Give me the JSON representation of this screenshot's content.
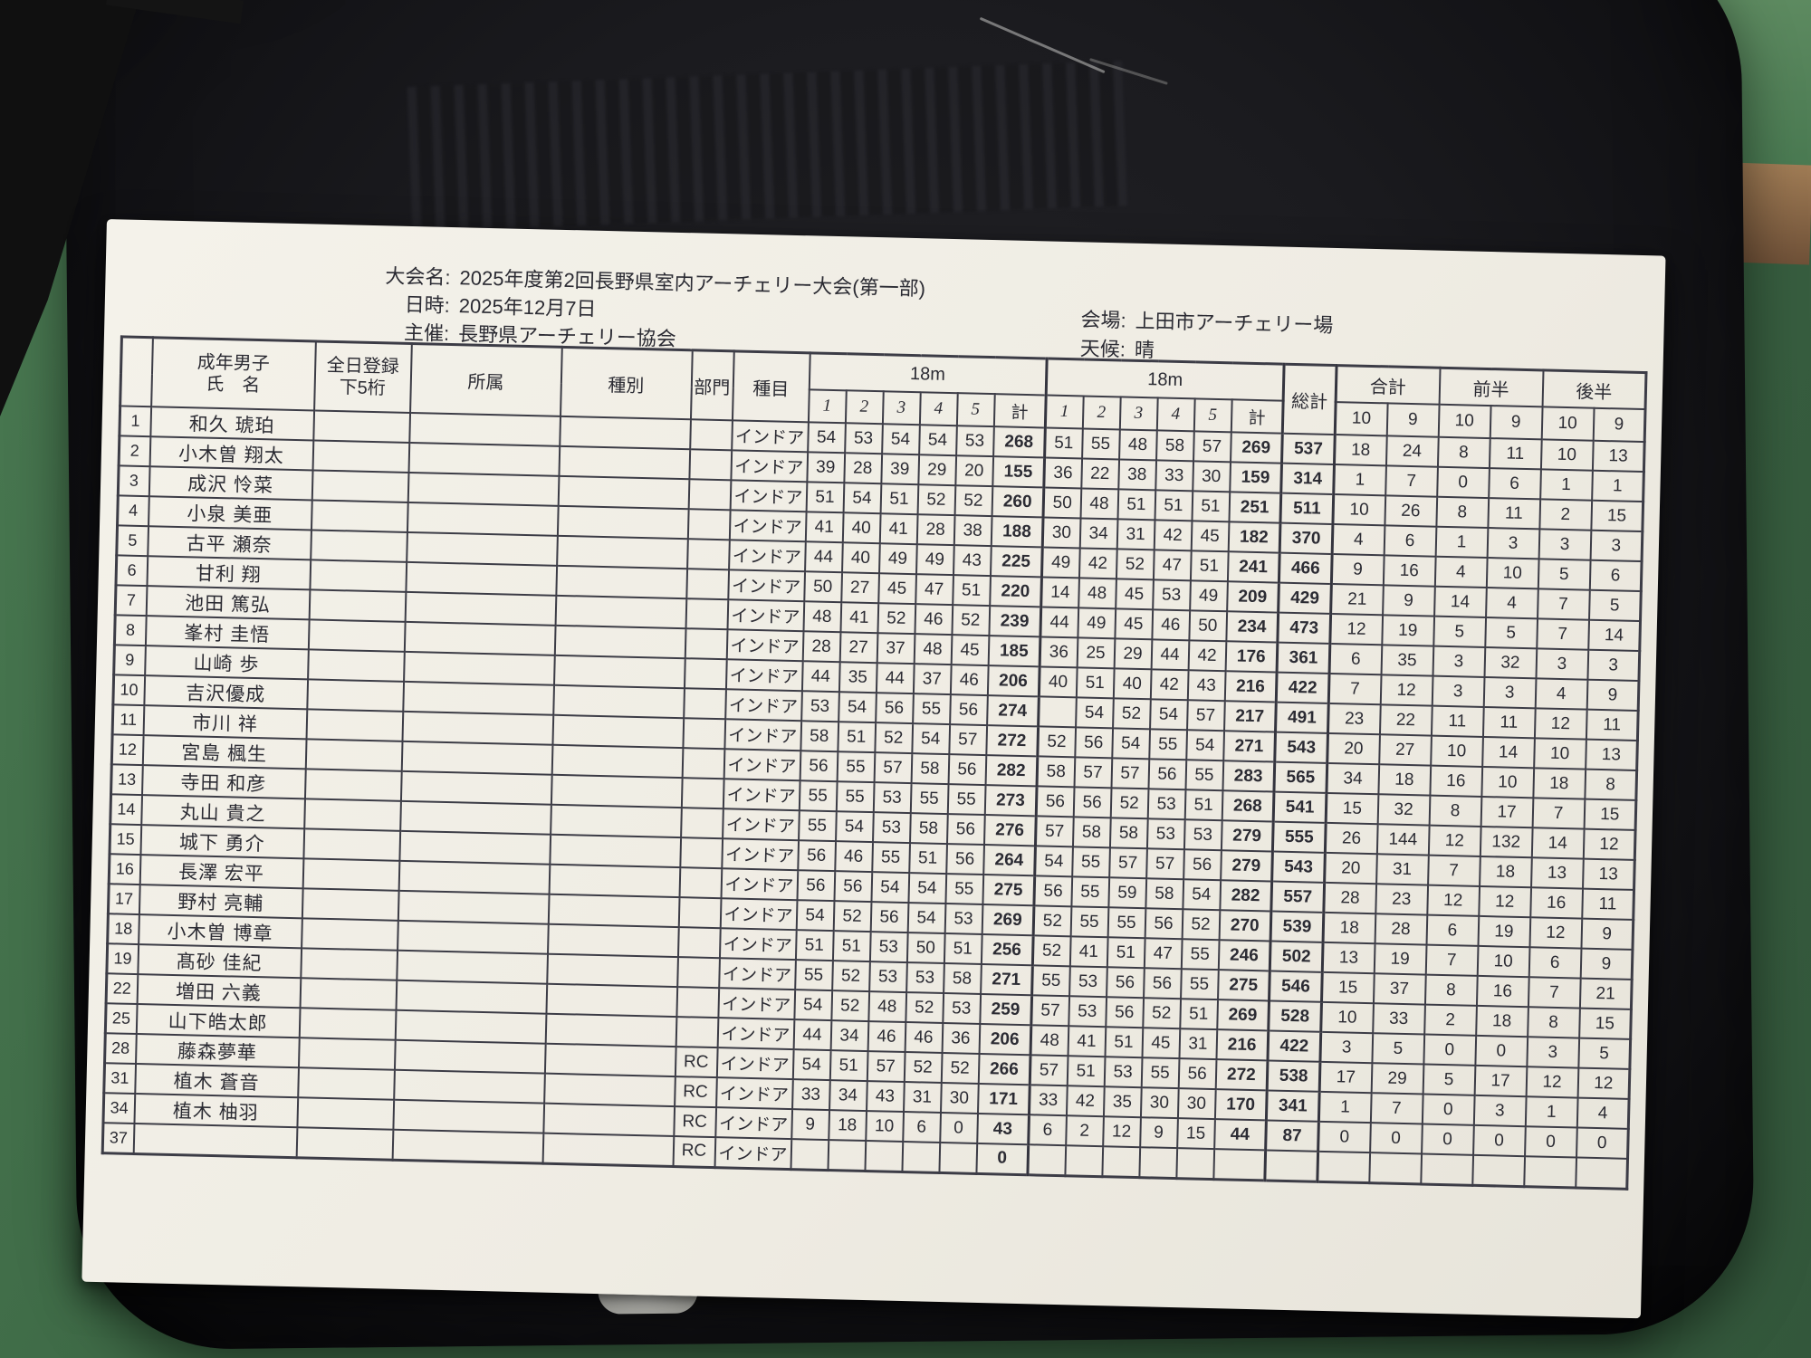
{
  "meta": {
    "event_label": "大会名:",
    "event_name": "2025年度第2回長野県室内アーチェリー大会(第一部)",
    "date_label": "日時:",
    "date_value": "2025年12月7日",
    "organizer_label": "主催:",
    "organizer_value": "長野県アーチェリー協会",
    "venue_label": "会場:",
    "venue_value": "上田市アーチェリー場",
    "weather_label": "天候:",
    "weather_value": "晴"
  },
  "colors": {
    "floor_green": "#3f6b47",
    "chair_black": "#17171a",
    "paper": "#f1efe7",
    "ink": "#2b2b33",
    "table_line": "#3c3c46"
  },
  "table": {
    "headers": {
      "category": "成年男子",
      "name": "氏　名",
      "reg1": "全日登録",
      "reg2": "下5桁",
      "affiliation": "所属",
      "class": "種別",
      "division": "部門",
      "event": "種目",
      "dist1": "18m",
      "dist2": "18m",
      "ends": [
        "1",
        "2",
        "3",
        "4",
        "5"
      ],
      "sum": "計",
      "grand_total": "総計",
      "total": "合計",
      "first_half": "前半",
      "second_half": "後半",
      "ten": "10",
      "nine": "9"
    },
    "rows": [
      {
        "no": "1",
        "name": "和久 琥珀",
        "division": "",
        "event": "インドア",
        "d1": [
          "54",
          "53",
          "54",
          "54",
          "53",
          "268"
        ],
        "d2": [
          "51",
          "55",
          "48",
          "58",
          "57",
          "269"
        ],
        "grand": "537",
        "counts": [
          "18",
          "24",
          "8",
          "11",
          "10",
          "13"
        ]
      },
      {
        "no": "2",
        "name": "小木曽 翔太",
        "division": "",
        "event": "インドア",
        "d1": [
          "39",
          "28",
          "39",
          "29",
          "20",
          "155"
        ],
        "d2": [
          "36",
          "22",
          "38",
          "33",
          "30",
          "159"
        ],
        "grand": "314",
        "counts": [
          "1",
          "7",
          "0",
          "6",
          "1",
          "1"
        ]
      },
      {
        "no": "3",
        "name": "成沢 怜菜",
        "division": "",
        "event": "インドア",
        "d1": [
          "51",
          "54",
          "51",
          "52",
          "52",
          "260"
        ],
        "d2": [
          "50",
          "48",
          "51",
          "51",
          "51",
          "251"
        ],
        "grand": "511",
        "counts": [
          "10",
          "26",
          "8",
          "11",
          "2",
          "15"
        ]
      },
      {
        "no": "4",
        "name": "小泉 美亜",
        "division": "",
        "event": "インドア",
        "d1": [
          "41",
          "40",
          "41",
          "28",
          "38",
          "188"
        ],
        "d2": [
          "30",
          "34",
          "31",
          "42",
          "45",
          "182"
        ],
        "grand": "370",
        "counts": [
          "4",
          "6",
          "1",
          "3",
          "3",
          "3"
        ]
      },
      {
        "no": "5",
        "name": "古平 瀬奈",
        "division": "",
        "event": "インドア",
        "d1": [
          "44",
          "40",
          "49",
          "49",
          "43",
          "225"
        ],
        "d2": [
          "49",
          "42",
          "52",
          "47",
          "51",
          "241"
        ],
        "grand": "466",
        "counts": [
          "9",
          "16",
          "4",
          "10",
          "5",
          "6"
        ]
      },
      {
        "no": "6",
        "name": "甘利 翔",
        "division": "",
        "event": "インドア",
        "d1": [
          "50",
          "27",
          "45",
          "47",
          "51",
          "220"
        ],
        "d2": [
          "14",
          "48",
          "45",
          "53",
          "49",
          "209"
        ],
        "grand": "429",
        "counts": [
          "21",
          "9",
          "14",
          "4",
          "7",
          "5"
        ]
      },
      {
        "no": "7",
        "name": "池田 篤弘",
        "division": "",
        "event": "インドア",
        "d1": [
          "48",
          "41",
          "52",
          "46",
          "52",
          "239"
        ],
        "d2": [
          "44",
          "49",
          "45",
          "46",
          "50",
          "234"
        ],
        "grand": "473",
        "counts": [
          "12",
          "19",
          "5",
          "5",
          "7",
          "14"
        ]
      },
      {
        "no": "8",
        "name": "峯村 圭悟",
        "division": "",
        "event": "インドア",
        "d1": [
          "28",
          "27",
          "37",
          "48",
          "45",
          "185"
        ],
        "d2": [
          "36",
          "25",
          "29",
          "44",
          "42",
          "176"
        ],
        "grand": "361",
        "counts": [
          "6",
          "35",
          "3",
          "32",
          "3",
          "3"
        ]
      },
      {
        "no": "9",
        "name": "山崎 歩",
        "division": "",
        "event": "インドア",
        "d1": [
          "44",
          "35",
          "44",
          "37",
          "46",
          "206"
        ],
        "d2": [
          "40",
          "51",
          "40",
          "42",
          "43",
          "216"
        ],
        "grand": "422",
        "counts": [
          "7",
          "12",
          "3",
          "3",
          "4",
          "9"
        ]
      },
      {
        "no": "10",
        "name": "吉沢優成",
        "division": "",
        "event": "インドア",
        "d1": [
          "53",
          "54",
          "56",
          "55",
          "56",
          "274"
        ],
        "d2": [
          "",
          "54",
          "52",
          "54",
          "57",
          "217"
        ],
        "grand": "491",
        "counts": [
          "23",
          "22",
          "11",
          "11",
          "12",
          "11"
        ]
      },
      {
        "no": "11",
        "name": "市川 祥",
        "division": "",
        "event": "インドア",
        "d1": [
          "58",
          "51",
          "52",
          "54",
          "57",
          "272"
        ],
        "d2": [
          "52",
          "56",
          "54",
          "55",
          "54",
          "271"
        ],
        "grand": "543",
        "counts": [
          "20",
          "27",
          "10",
          "14",
          "10",
          "13"
        ]
      },
      {
        "no": "12",
        "name": "宮島 楓生",
        "division": "",
        "event": "インドア",
        "d1": [
          "56",
          "55",
          "57",
          "58",
          "56",
          "282"
        ],
        "d2": [
          "58",
          "57",
          "57",
          "56",
          "55",
          "283"
        ],
        "grand": "565",
        "counts": [
          "34",
          "18",
          "16",
          "10",
          "18",
          "8"
        ]
      },
      {
        "no": "13",
        "name": "寺田 和彦",
        "division": "",
        "event": "インドア",
        "d1": [
          "55",
          "55",
          "53",
          "55",
          "55",
          "273"
        ],
        "d2": [
          "56",
          "56",
          "52",
          "53",
          "51",
          "268"
        ],
        "grand": "541",
        "counts": [
          "15",
          "32",
          "8",
          "17",
          "7",
          "15"
        ]
      },
      {
        "no": "14",
        "name": "丸山 貴之",
        "division": "",
        "event": "インドア",
        "d1": [
          "55",
          "54",
          "53",
          "58",
          "56",
          "276"
        ],
        "d2": [
          "57",
          "58",
          "58",
          "53",
          "53",
          "279"
        ],
        "grand": "555",
        "counts": [
          "26",
          "144",
          "12",
          "132",
          "14",
          "12"
        ]
      },
      {
        "no": "15",
        "name": "城下 勇介",
        "division": "",
        "event": "インドア",
        "d1": [
          "56",
          "46",
          "55",
          "51",
          "56",
          "264"
        ],
        "d2": [
          "54",
          "55",
          "57",
          "57",
          "56",
          "279"
        ],
        "grand": "543",
        "counts": [
          "20",
          "31",
          "7",
          "18",
          "13",
          "13"
        ]
      },
      {
        "no": "16",
        "name": "長澤 宏平",
        "division": "",
        "event": "インドア",
        "d1": [
          "56",
          "56",
          "54",
          "54",
          "55",
          "275"
        ],
        "d2": [
          "56",
          "55",
          "59",
          "58",
          "54",
          "282"
        ],
        "grand": "557",
        "counts": [
          "28",
          "23",
          "12",
          "12",
          "16",
          "11"
        ]
      },
      {
        "no": "17",
        "name": "野村 亮輔",
        "division": "",
        "event": "インドア",
        "d1": [
          "54",
          "52",
          "56",
          "54",
          "53",
          "269"
        ],
        "d2": [
          "52",
          "55",
          "55",
          "56",
          "52",
          "270"
        ],
        "grand": "539",
        "counts": [
          "18",
          "28",
          "6",
          "19",
          "12",
          "9"
        ]
      },
      {
        "no": "18",
        "name": "小木曽 博章",
        "division": "",
        "event": "インドア",
        "d1": [
          "51",
          "51",
          "53",
          "50",
          "51",
          "256"
        ],
        "d2": [
          "52",
          "41",
          "51",
          "47",
          "55",
          "246"
        ],
        "grand": "502",
        "counts": [
          "13",
          "19",
          "7",
          "10",
          "6",
          "9"
        ]
      },
      {
        "no": "19",
        "name": "髙砂 佳紀",
        "division": "",
        "event": "インドア",
        "d1": [
          "55",
          "52",
          "53",
          "53",
          "58",
          "271"
        ],
        "d2": [
          "55",
          "53",
          "56",
          "56",
          "55",
          "275"
        ],
        "grand": "546",
        "counts": [
          "15",
          "37",
          "8",
          "16",
          "7",
          "21"
        ]
      },
      {
        "no": "22",
        "name": "増田 六義",
        "division": "",
        "event": "インドア",
        "d1": [
          "54",
          "52",
          "48",
          "52",
          "53",
          "259"
        ],
        "d2": [
          "57",
          "53",
          "56",
          "52",
          "51",
          "269"
        ],
        "grand": "528",
        "counts": [
          "10",
          "33",
          "2",
          "18",
          "8",
          "15"
        ]
      },
      {
        "no": "25",
        "name": "山下皓太郎",
        "division": "",
        "event": "インドア",
        "d1": [
          "44",
          "34",
          "46",
          "46",
          "36",
          "206"
        ],
        "d2": [
          "48",
          "41",
          "51",
          "45",
          "31",
          "216"
        ],
        "grand": "422",
        "counts": [
          "3",
          "5",
          "0",
          "0",
          "3",
          "5"
        ]
      },
      {
        "no": "28",
        "name": "藤森夢華",
        "division": "RC",
        "event": "インドア",
        "d1": [
          "54",
          "51",
          "57",
          "52",
          "52",
          "266"
        ],
        "d2": [
          "57",
          "51",
          "53",
          "55",
          "56",
          "272"
        ],
        "grand": "538",
        "counts": [
          "17",
          "29",
          "5",
          "17",
          "12",
          "12"
        ]
      },
      {
        "no": "31",
        "name": "植木 蒼音",
        "division": "RC",
        "event": "インドア",
        "d1": [
          "33",
          "34",
          "43",
          "31",
          "30",
          "171"
        ],
        "d2": [
          "33",
          "42",
          "35",
          "30",
          "30",
          "170"
        ],
        "grand": "341",
        "counts": [
          "1",
          "7",
          "0",
          "3",
          "1",
          "4"
        ]
      },
      {
        "no": "34",
        "name": "植木 柚羽",
        "division": "RC",
        "event": "インドア",
        "d1": [
          "9",
          "18",
          "10",
          "6",
          "0",
          "43"
        ],
        "d2": [
          "6",
          "2",
          "12",
          "9",
          "15",
          "44"
        ],
        "grand": "87",
        "counts": [
          "0",
          "0",
          "0",
          "0",
          "0",
          "0"
        ]
      },
      {
        "no": "37",
        "name": "",
        "division": "RC",
        "event": "インドア",
        "d1": [
          "",
          "",
          "",
          "",
          "",
          "0"
        ],
        "d2": [
          "",
          "",
          "",
          "",
          "",
          ""
        ],
        "grand": "",
        "counts": [
          "",
          "",
          "",
          "",
          "",
          ""
        ]
      }
    ]
  }
}
